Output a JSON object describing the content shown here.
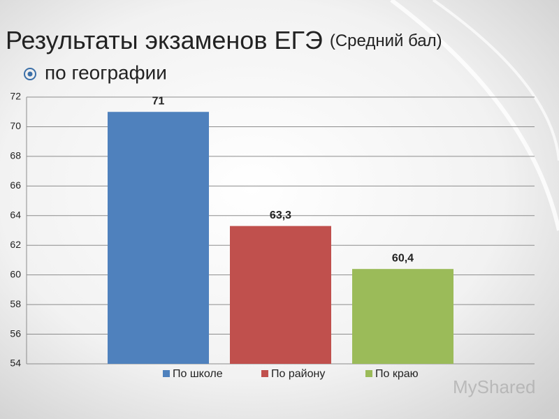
{
  "chart_data": {
    "type": "bar",
    "title": "Результаты экзаменов ЕГЭ",
    "title_note": "(Средний бал)",
    "subtitle": "по географии",
    "categories": [
      null
    ],
    "series": [
      {
        "name": "По школе",
        "color": "#4f81bd",
        "values": [
          71
        ]
      },
      {
        "name": "По району",
        "color": "#c0504d",
        "values": [
          63.3
        ],
        "value_labels": [
          "63,3"
        ]
      },
      {
        "name": "По краю",
        "color": "#9bbb59",
        "values": [
          60.4
        ],
        "value_labels": [
          "60,4"
        ]
      }
    ],
    "ylim": [
      54,
      72
    ],
    "yticks": [
      54,
      56,
      58,
      60,
      62,
      64,
      66,
      68,
      70,
      72
    ],
    "grid": true,
    "legend": "bottom",
    "watermark": "MyShared"
  }
}
